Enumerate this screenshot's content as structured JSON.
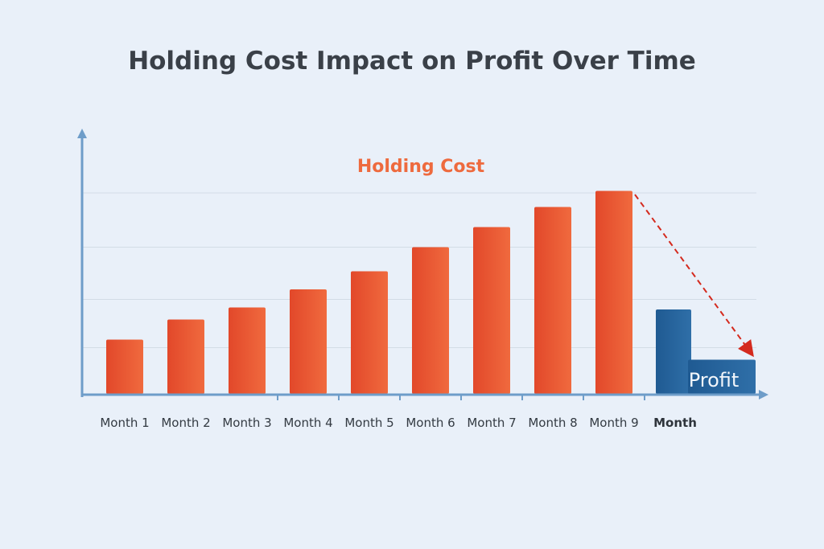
{
  "chart_data": {
    "type": "bar",
    "title": "Holding Cost Impact on Profit Over Time",
    "xlabel": "Month",
    "ylabel": "",
    "categories": [
      "Month 1",
      "Month 2",
      "Month 3",
      "Month 4",
      "Month 5",
      "Month 6",
      "Month 7",
      "Month 8",
      "Month 9"
    ],
    "series": [
      {
        "name": "Holding Cost",
        "color": "#ec5a30",
        "values": [
          27,
          37,
          43,
          52,
          61,
          73,
          83,
          93,
          101
        ]
      }
    ],
    "profit": {
      "label": "Profit",
      "color": "#245f98",
      "values": [
        42,
        17
      ]
    },
    "trend_arrow": {
      "color": "#d42a1e",
      "style": "dashed",
      "direction": "down"
    },
    "gridlines": [
      23,
      47,
      73,
      100
    ],
    "ylim": [
      0,
      132
    ],
    "grid": true,
    "axis_color": "#6e9dc9"
  }
}
